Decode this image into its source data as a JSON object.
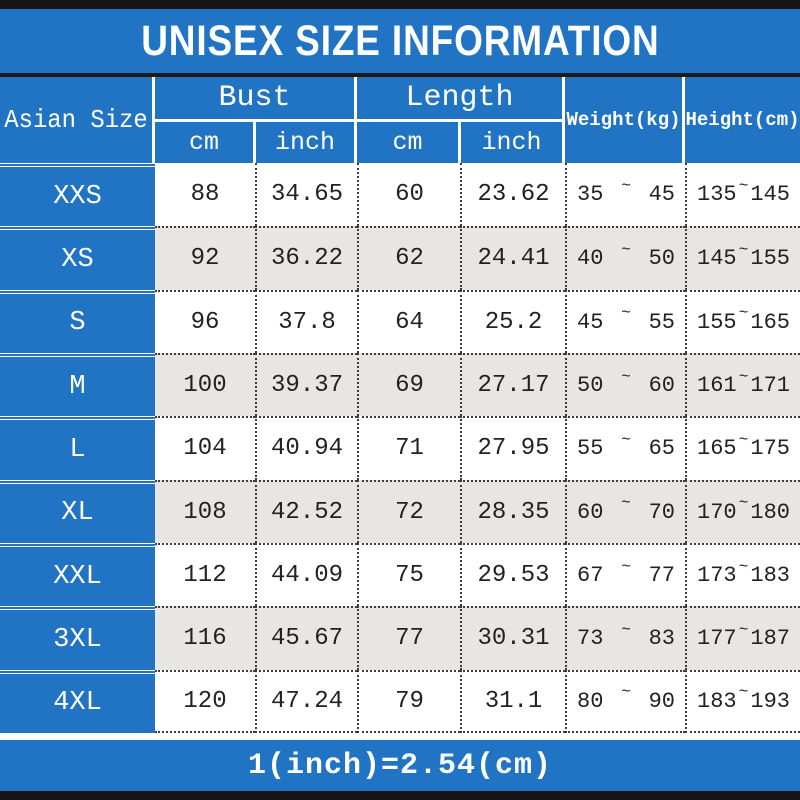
{
  "title": "UNISEX SIZE INFORMATION",
  "header": {
    "size_col": "Asian Size",
    "bust": {
      "label": "Bust",
      "sub_cm": "cm",
      "sub_inch": "inch"
    },
    "length": {
      "label": "Length",
      "sub_cm": "cm",
      "sub_inch": "inch"
    },
    "weight": "Weight(kg)",
    "height": "Height(cm)"
  },
  "tilde": "~",
  "footer_note": "1(inch)=2.54(cm)",
  "colors": {
    "blue": "#2173c4",
    "alt_row": "#e8e6e4",
    "frame_bar": "#151515",
    "dotted_line": "#3c3c3c",
    "text": "#222222",
    "header_text": "#ffffff"
  },
  "chart_data": {
    "type": "table",
    "title": "UNISEX SIZE INFORMATION",
    "columns": [
      "Asian Size",
      "Bust cm",
      "Bust inch",
      "Length cm",
      "Length inch",
      "Weight(kg) min",
      "Weight(kg) max",
      "Height(cm) min",
      "Height(cm) max"
    ],
    "rows": [
      [
        "XXS",
        "88",
        "34.65",
        "60",
        "23.62",
        "35",
        "45",
        "135",
        "145"
      ],
      [
        "XS",
        "92",
        "36.22",
        "62",
        "24.41",
        "40",
        "50",
        "145",
        "155"
      ],
      [
        "S",
        "96",
        "37.8",
        "64",
        "25.2",
        "45",
        "55",
        "155",
        "165"
      ],
      [
        "M",
        "100",
        "39.37",
        "69",
        "27.17",
        "50",
        "60",
        "161",
        "171"
      ],
      [
        "L",
        "104",
        "40.94",
        "71",
        "27.95",
        "55",
        "65",
        "165",
        "175"
      ],
      [
        "XL",
        "108",
        "42.52",
        "72",
        "28.35",
        "60",
        "70",
        "170",
        "180"
      ],
      [
        "XXL",
        "112",
        "44.09",
        "75",
        "29.53",
        "67",
        "77",
        "173",
        "183"
      ],
      [
        "3XL",
        "116",
        "45.67",
        "77",
        "30.31",
        "73",
        "83",
        "177",
        "187"
      ],
      [
        "4XL",
        "120",
        "47.24",
        "79",
        "31.1",
        "80",
        "90",
        "183",
        "193"
      ]
    ],
    "note": "1(inch)=2.54(cm)",
    "legend_position": "none",
    "grid": "dotted"
  }
}
